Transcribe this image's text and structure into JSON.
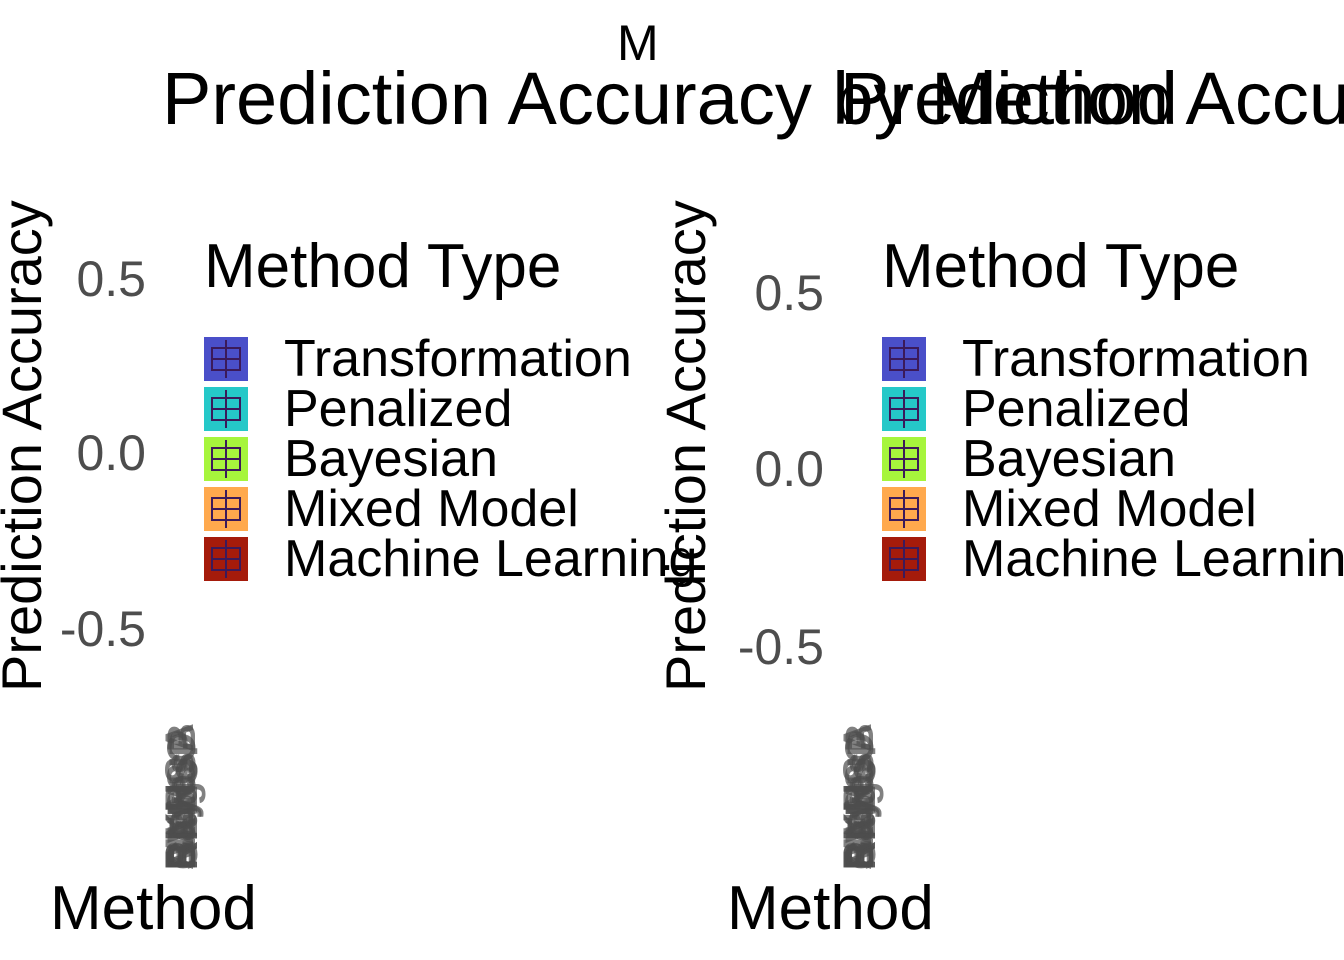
{
  "strip_label": "M",
  "chart_data": [
    {
      "type": "box",
      "title": "Prediction Accuracy by Method",
      "ylabel": "Prediction Accuracy",
      "xlabel": "Method",
      "yticks": [
        {
          "value": 0.5,
          "label": "0.5"
        },
        {
          "value": 0.0,
          "label": "0.0"
        },
        {
          "value": -0.5,
          "label": "-0.5"
        }
      ],
      "legend": {
        "title": "Method Type",
        "entries": [
          {
            "label": "Transformation",
            "color": "#4a4fc9"
          },
          {
            "label": "Penalized",
            "color": "#25c8c8"
          },
          {
            "label": "Bayesian",
            "color": "#a6f53c"
          },
          {
            "label": "Mixed Model",
            "color": "#ffa94d"
          },
          {
            "label": "Machine Learning",
            "color": "#a51b0b"
          }
        ]
      },
      "x_categories_overlapping": [
        "MLR",
        "LASSO",
        "Ridge",
        "BayesA",
        "BayesB",
        "GBLUP",
        "RKHS",
        "SVM",
        "RF",
        "ANN"
      ]
    },
    {
      "type": "box",
      "title": "Prediction Accuracy by Method",
      "ylabel": "Prediction Accuracy",
      "xlabel": "Method",
      "yticks": [
        {
          "value": 0.5,
          "label": "0.5"
        },
        {
          "value": 0.0,
          "label": "0.0"
        },
        {
          "value": -0.5,
          "label": "-0.5"
        }
      ],
      "legend": {
        "title": "Method Type",
        "entries": [
          {
            "label": "Transformation",
            "color": "#4a4fc9"
          },
          {
            "label": "Penalized",
            "color": "#25c8c8"
          },
          {
            "label": "Bayesian",
            "color": "#a6f53c"
          },
          {
            "label": "Mixed Model",
            "color": "#ffa94d"
          },
          {
            "label": "Machine Learning",
            "color": "#a51b0b"
          }
        ]
      },
      "x_categories_overlapping": [
        "MLR",
        "LASSO",
        "Ridge",
        "BayesA",
        "BayesB",
        "GBLUP",
        "RKHS",
        "SVM",
        "RF",
        "ANN"
      ]
    }
  ],
  "box_outline_color": "#3b1a5a"
}
